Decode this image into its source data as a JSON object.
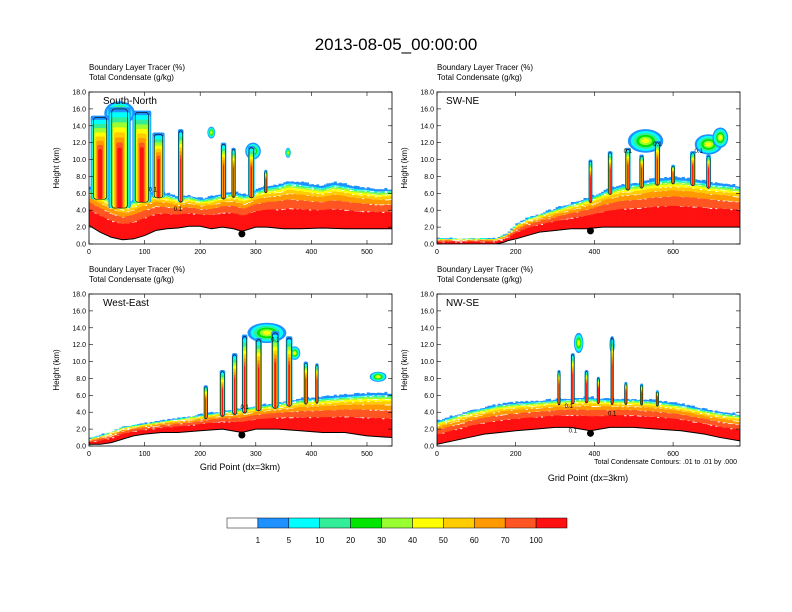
{
  "title": "2013-08-05_00:00:00",
  "colors": {
    "bins": [
      "#ffffff",
      "#1e90ff",
      "#00ffff",
      "#33ee99",
      "#00e600",
      "#99ff33",
      "#ffff00",
      "#ffcc00",
      "#ff9900",
      "#ff5522",
      "#ff1111"
    ],
    "contour": "#000000",
    "terrain": "#000000"
  },
  "colorbar": {
    "labels": [
      "1",
      "5",
      "10",
      "20",
      "30",
      "40",
      "50",
      "60",
      "70",
      "100"
    ]
  },
  "chart_data": [
    {
      "type": "heatmap",
      "cross_section": "South-North",
      "title_lines": [
        "Boundary Layer Tracer   (%)",
        "Total Condensate   (g/kg)"
      ],
      "ylabel": "Height (km)",
      "xlabel": "",
      "ylim": [
        0,
        18
      ],
      "yticks": [
        "0.0",
        "2.0",
        "4.0",
        "6.0",
        "8.0",
        "10.0",
        "12.0",
        "14.0",
        "16.0",
        "18.0"
      ],
      "xlim": [
        0,
        545
      ],
      "xticks": [
        0,
        100,
        200,
        300,
        400,
        500
      ],
      "marker_x": 275,
      "contour_labels": [
        {
          "text": "0.1",
          "x": 115,
          "y": 6.2
        },
        {
          "text": "0.1",
          "x": 160,
          "y": 3.9
        }
      ],
      "terrain": [
        [
          0,
          2.2
        ],
        [
          20,
          1.4
        ],
        [
          40,
          0.8
        ],
        [
          60,
          0.5
        ],
        [
          80,
          0.6
        ],
        [
          100,
          1.0
        ],
        [
          120,
          1.6
        ],
        [
          140,
          1.8
        ],
        [
          160,
          1.9
        ],
        [
          180,
          2.1
        ],
        [
          200,
          2.1
        ],
        [
          220,
          1.8
        ],
        [
          240,
          2.0
        ],
        [
          260,
          1.8
        ],
        [
          275,
          1.5
        ],
        [
          300,
          2.0
        ],
        [
          320,
          2.0
        ],
        [
          350,
          1.8
        ],
        [
          380,
          1.8
        ],
        [
          420,
          1.9
        ],
        [
          460,
          1.8
        ],
        [
          500,
          1.8
        ],
        [
          545,
          1.8
        ]
      ],
      "bl_top": [
        [
          0,
          6.5
        ],
        [
          20,
          5.8
        ],
        [
          40,
          5.2
        ],
        [
          60,
          4.6
        ],
        [
          80,
          5.0
        ],
        [
          100,
          5.6
        ],
        [
          120,
          6.0
        ],
        [
          140,
          5.8
        ],
        [
          160,
          5.4
        ],
        [
          180,
          5.6
        ],
        [
          200,
          5.2
        ],
        [
          220,
          5.4
        ],
        [
          240,
          5.8
        ],
        [
          260,
          6.0
        ],
        [
          280,
          5.6
        ],
        [
          300,
          6.2
        ],
        [
          320,
          6.6
        ],
        [
          340,
          6.8
        ],
        [
          360,
          7.2
        ],
        [
          380,
          7.0
        ],
        [
          400,
          6.8
        ],
        [
          420,
          6.6
        ],
        [
          440,
          7.0
        ],
        [
          460,
          6.8
        ],
        [
          480,
          6.5
        ],
        [
          500,
          6.4
        ],
        [
          520,
          6.2
        ],
        [
          545,
          6.3
        ]
      ],
      "towers": [
        [
          20,
          15.2,
          34
        ],
        [
          55,
          16.2,
          40
        ],
        [
          95,
          15.8,
          34
        ],
        [
          125,
          13.2,
          22
        ],
        [
          165,
          13.6,
          10
        ],
        [
          242,
          12.0,
          10
        ],
        [
          260,
          11.4,
          8
        ],
        [
          292,
          11.6,
          12
        ],
        [
          318,
          8.8,
          6
        ]
      ],
      "anvils": [
        [
          55,
          15.5,
          55,
          1.4
        ],
        [
          220,
          13.2,
          14,
          0.7
        ],
        [
          295,
          11.0,
          28,
          1.0
        ],
        [
          358,
          10.8,
          10,
          0.6
        ]
      ]
    },
    {
      "type": "heatmap",
      "cross_section": "SW-NE",
      "title_lines": [
        "Boundary Layer Tracer   (%)",
        "Total Condensate   (g/kg)"
      ],
      "ylabel": "Height (km)",
      "xlabel": "",
      "ylim": [
        0,
        18
      ],
      "yticks": [
        "0.0",
        "2.0",
        "4.0",
        "6.0",
        "8.0",
        "10.0",
        "12.0",
        "14.0",
        "16.0",
        "18.0"
      ],
      "xlim": [
        0,
        770
      ],
      "xticks": [
        0,
        200,
        400,
        600
      ],
      "marker_x": 390,
      "contour_labels": [
        {
          "text": "0.1",
          "x": 485,
          "y": 10.8
        },
        {
          "text": "0.1",
          "x": 560,
          "y": 11.6
        },
        {
          "text": "0.1",
          "x": 665,
          "y": 10.8
        }
      ],
      "terrain": [
        [
          0,
          0.0
        ],
        [
          150,
          0.0
        ],
        [
          170,
          0.2
        ],
        [
          180,
          0.4
        ],
        [
          200,
          0.6
        ],
        [
          230,
          1.0
        ],
        [
          260,
          1.4
        ],
        [
          300,
          1.6
        ],
        [
          340,
          1.8
        ],
        [
          380,
          1.8
        ],
        [
          420,
          2.0
        ],
        [
          480,
          2.0
        ],
        [
          540,
          2.0
        ],
        [
          600,
          2.0
        ],
        [
          660,
          2.0
        ],
        [
          720,
          2.0
        ],
        [
          770,
          2.0
        ]
      ],
      "bl_top": [
        [
          0,
          0.6
        ],
        [
          150,
          0.6
        ],
        [
          180,
          1.2
        ],
        [
          200,
          2.2
        ],
        [
          230,
          3.0
        ],
        [
          270,
          3.6
        ],
        [
          310,
          4.2
        ],
        [
          350,
          4.8
        ],
        [
          390,
          5.4
        ],
        [
          430,
          6.2
        ],
        [
          470,
          6.8
        ],
        [
          510,
          7.0
        ],
        [
          550,
          7.4
        ],
        [
          600,
          7.6
        ],
        [
          650,
          7.4
        ],
        [
          700,
          7.0
        ],
        [
          740,
          6.8
        ],
        [
          770,
          6.6
        ]
      ],
      "towers": [
        [
          390,
          10.0,
          10
        ],
        [
          440,
          11.0,
          12
        ],
        [
          485,
          11.4,
          14
        ],
        [
          520,
          10.6,
          12
        ],
        [
          560,
          12.2,
          14
        ],
        [
          600,
          9.4,
          10
        ],
        [
          650,
          11.0,
          14
        ],
        [
          690,
          10.6,
          12
        ]
      ],
      "anvils": [
        [
          530,
          12.2,
          90,
          1.4
        ],
        [
          690,
          11.8,
          70,
          1.2
        ],
        [
          720,
          12.6,
          40,
          1.2
        ]
      ]
    },
    {
      "type": "heatmap",
      "cross_section": "West-East",
      "title_lines": [
        "Boundary Layer Tracer   (%)",
        "Total Condensate   (g/kg)"
      ],
      "ylabel": "Height (km)",
      "xlabel": "Grid Point (dx=3km)",
      "ylim": [
        0,
        18
      ],
      "yticks": [
        "0.0",
        "2.0",
        "4.0",
        "6.0",
        "8.0",
        "10.0",
        "12.0",
        "14.0",
        "16.0",
        "18.0"
      ],
      "xlim": [
        0,
        545
      ],
      "xticks": [
        0,
        100,
        200,
        300,
        400,
        500
      ],
      "marker_x": 275,
      "contour_labels": [
        {
          "text": "0.1",
          "x": 335,
          "y": 12.4
        },
        {
          "text": "0.1",
          "x": 280,
          "y": 4.4
        }
      ],
      "terrain": [
        [
          0,
          0.2
        ],
        [
          20,
          0.2
        ],
        [
          40,
          0.4
        ],
        [
          60,
          0.8
        ],
        [
          80,
          1.2
        ],
        [
          100,
          1.4
        ],
        [
          130,
          1.6
        ],
        [
          160,
          1.6
        ],
        [
          200,
          1.8
        ],
        [
          240,
          2.0
        ],
        [
          275,
          1.6
        ],
        [
          300,
          2.0
        ],
        [
          340,
          2.0
        ],
        [
          380,
          1.8
        ],
        [
          420,
          1.6
        ],
        [
          460,
          1.6
        ],
        [
          500,
          1.2
        ],
        [
          545,
          1.0
        ]
      ],
      "bl_top": [
        [
          0,
          0.8
        ],
        [
          30,
          1.4
        ],
        [
          60,
          2.2
        ],
        [
          100,
          2.6
        ],
        [
          140,
          3.0
        ],
        [
          180,
          3.4
        ],
        [
          220,
          3.8
        ],
        [
          260,
          4.2
        ],
        [
          300,
          4.6
        ],
        [
          340,
          5.0
        ],
        [
          380,
          5.4
        ],
        [
          420,
          5.6
        ],
        [
          460,
          5.8
        ],
        [
          500,
          6.0
        ],
        [
          545,
          6.0
        ]
      ],
      "towers": [
        [
          210,
          7.2,
          8
        ],
        [
          240,
          9.0,
          10
        ],
        [
          262,
          11.0,
          10
        ],
        [
          280,
          13.2,
          10
        ],
        [
          305,
          12.8,
          12
        ],
        [
          335,
          13.6,
          14
        ],
        [
          360,
          13.0,
          12
        ],
        [
          390,
          10.0,
          8
        ],
        [
          410,
          9.8,
          6
        ]
      ],
      "anvils": [
        [
          320,
          13.4,
          70,
          1.2
        ],
        [
          370,
          11.0,
          20,
          0.8
        ],
        [
          520,
          8.2,
          30,
          0.6
        ]
      ]
    },
    {
      "type": "heatmap",
      "cross_section": "NW-SE",
      "title_lines": [
        "Boundary Layer Tracer   (%)",
        "Total Condensate   (g/kg)"
      ],
      "ylabel": "Height (km)",
      "xlabel": "Grid Point (dx=3km)",
      "ylim": [
        0,
        18
      ],
      "yticks": [
        "0.0",
        "2.0",
        "4.0",
        "6.0",
        "8.0",
        "10.0",
        "12.0",
        "14.0",
        "16.0",
        "18.0"
      ],
      "xlim": [
        0,
        770
      ],
      "xticks": [
        0,
        200,
        400,
        600
      ],
      "marker_x": 390,
      "note": "Total Condensate Contours: .01 to .01 by .000",
      "contour_labels": [
        {
          "text": "0.1",
          "x": 335,
          "y": 4.5
        },
        {
          "text": "0.1",
          "x": 345,
          "y": 1.6
        },
        {
          "text": "0.1",
          "x": 445,
          "y": 3.6
        }
      ],
      "terrain": [
        [
          0,
          0.2
        ],
        [
          40,
          0.6
        ],
        [
          80,
          1.0
        ],
        [
          120,
          1.4
        ],
        [
          160,
          1.6
        ],
        [
          200,
          1.8
        ],
        [
          250,
          2.0
        ],
        [
          300,
          2.2
        ],
        [
          340,
          2.2
        ],
        [
          390,
          1.8
        ],
        [
          440,
          2.2
        ],
        [
          500,
          2.2
        ],
        [
          560,
          2.0
        ],
        [
          620,
          1.8
        ],
        [
          680,
          1.4
        ],
        [
          720,
          1.0
        ],
        [
          770,
          0.6
        ]
      ],
      "bl_top": [
        [
          0,
          2.8
        ],
        [
          40,
          3.4
        ],
        [
          80,
          4.0
        ],
        [
          120,
          4.4
        ],
        [
          160,
          4.8
        ],
        [
          200,
          5.0
        ],
        [
          260,
          5.2
        ],
        [
          320,
          5.4
        ],
        [
          380,
          5.6
        ],
        [
          440,
          5.4
        ],
        [
          500,
          5.4
        ],
        [
          560,
          5.2
        ],
        [
          620,
          4.8
        ],
        [
          680,
          4.2
        ],
        [
          730,
          3.8
        ],
        [
          770,
          3.6
        ]
      ],
      "towers": [
        [
          310,
          9.0,
          8
        ],
        [
          345,
          11.0,
          10
        ],
        [
          380,
          9.0,
          10
        ],
        [
          410,
          8.2,
          8
        ],
        [
          445,
          13.0,
          8
        ],
        [
          480,
          7.6,
          8
        ],
        [
          520,
          7.4,
          8
        ],
        [
          560,
          6.6,
          8
        ]
      ],
      "anvils": [
        [
          360,
          12.2,
          24,
          1.2
        ],
        [
          445,
          12.0,
          14,
          1.0
        ]
      ]
    }
  ]
}
